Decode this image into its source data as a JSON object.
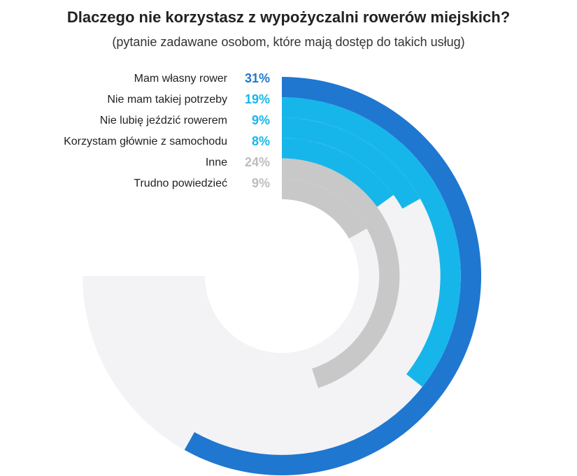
{
  "chart_data": {
    "type": "radial-bar",
    "title": "Dlaczego nie korzystasz z wypożyczalni rowerów miejskich?",
    "subtitle": "(pytanie zadawane osobom, które mają dostęp do takich usług)",
    "unit": "%",
    "categories": [
      "Mam własny rower",
      "Nie mam takiej potrzeby",
      "Nie lubię jeździć rowerem",
      "Korzystam głównie z samochodu",
      "Inne",
      "Trudno powiedzieć"
    ],
    "values": [
      31,
      19,
      9,
      8,
      24,
      9
    ],
    "value_labels": [
      "31%",
      "19%",
      "9%",
      "8%",
      "24%",
      "9%"
    ],
    "colors": [
      "#1f77d0",
      "#17b6ea",
      "#17b6ea",
      "#17b6ea",
      "#c8c8c8",
      "#c8c8c8"
    ],
    "label_colors": [
      "#1f77d0",
      "#17b6ea",
      "#17b6ea",
      "#17b6ea",
      "#bdbdbd",
      "#bdbdbd"
    ],
    "track_color": "#f3f3f5",
    "scale_max": 40
  }
}
